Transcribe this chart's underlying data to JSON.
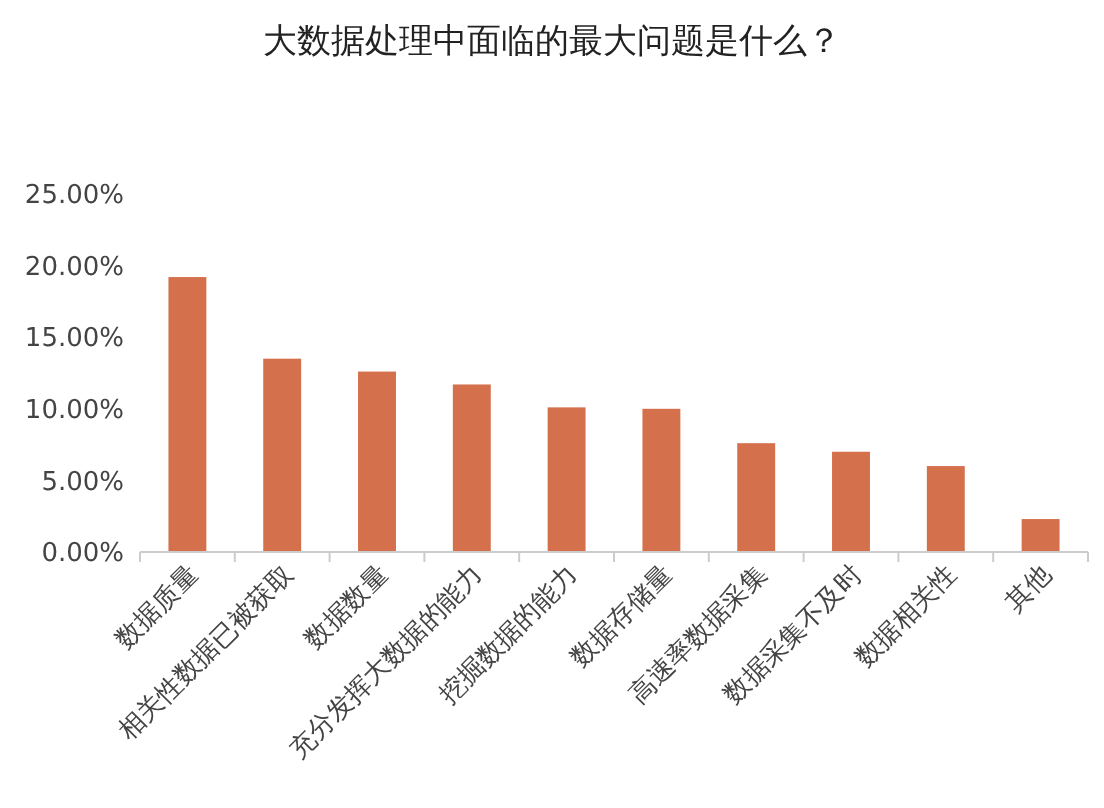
{
  "chart_data": {
    "type": "bar",
    "title": "大数据处理中面临的最大问题是什么？",
    "categories": [
      "数据质量",
      "相关性数据已被获取",
      "数据数量",
      "充分发挥大数据的能力",
      "挖掘数据的能力",
      "数据存储量",
      "高速率数据采集",
      "数据采集不及时",
      "数据相关性",
      "其他"
    ],
    "values": [
      19.2,
      13.5,
      12.6,
      11.7,
      10.1,
      10.0,
      7.6,
      7.0,
      6.0,
      2.3
    ],
    "color": "#d4704c",
    "ylim": [
      0,
      25
    ],
    "yticks": [
      {
        "value": 0,
        "label": "0.00%"
      },
      {
        "value": 5,
        "label": "5.00%"
      },
      {
        "value": 10,
        "label": "10.00%"
      },
      {
        "value": 15,
        "label": "15.00%"
      },
      {
        "value": 20,
        "label": "20.00%"
      },
      {
        "value": 25,
        "label": "25.00%"
      }
    ],
    "grid": false
  }
}
